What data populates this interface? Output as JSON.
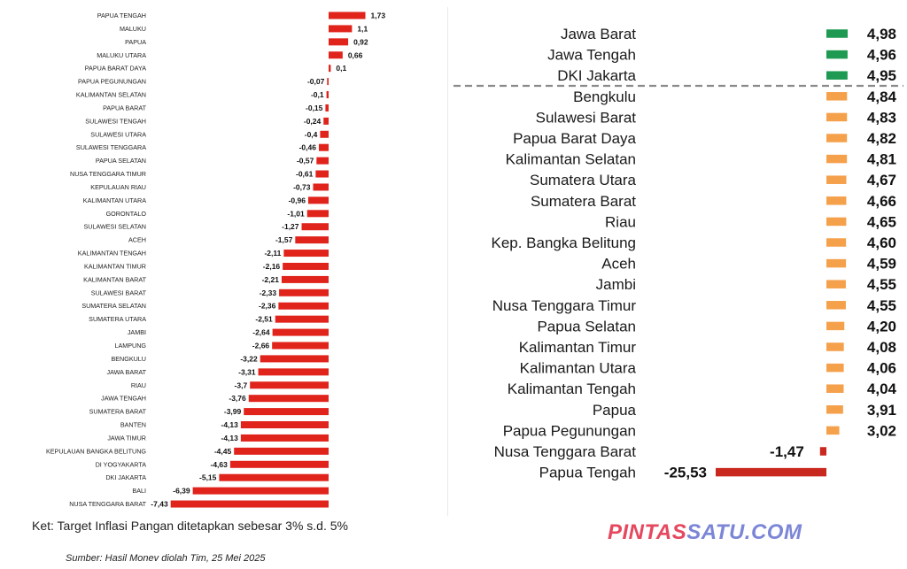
{
  "left": {
    "note": "Ket: Target Inflasi Pangan ditetapkan sebesar 3% s.d. 5%",
    "source": "Sumber: Hasil Monev  diolah Tim, 25 Mei 2025"
  },
  "watermark": {
    "part1": "PINTAS",
    "part2": "SATU.COM"
  },
  "chart_data": [
    {
      "type": "bar",
      "orientation": "horizontal",
      "color": "#e0231b",
      "categories": [
        "PAPUA TENGAH",
        "MALUKU",
        "PAPUA",
        "MALUKU UTARA",
        "PAPUA BARAT DAYA",
        "PAPUA PEGUNUNGAN",
        "KALIMANTAN SELATAN",
        "PAPUA BARAT",
        "SULAWESI TENGAH",
        "SULAWESI UTARA",
        "SULAWESI TENGGARA",
        "PAPUA SELATAN",
        "NUSA TENGGARA TIMUR",
        "KEPULAUAN RIAU",
        "KALIMANTAN UTARA",
        "GORONTALO",
        "SULAWESI SELATAN",
        "ACEH",
        "KALIMANTAN TENGAH",
        "KALIMANTAN TIMUR",
        "KALIMANTAN BARAT",
        "SULAWESI BARAT",
        "SUMATERA SELATAN",
        "SUMATERA UTARA",
        "JAMBI",
        "LAMPUNG",
        "BENGKULU",
        "JAWA BARAT",
        "RIAU",
        "JAWA TENGAH",
        "SUMATERA BARAT",
        "BANTEN",
        "JAWA TIMUR",
        "KEPULAUAN BANGKA BELITUNG",
        "DI YOGYAKARTA",
        "DKI JAKARTA",
        "BALI",
        "NUSA TENGGARA BARAT"
      ],
      "values": [
        1.73,
        1.1,
        0.92,
        0.66,
        0.1,
        -0.07,
        -0.1,
        -0.15,
        -0.24,
        -0.4,
        -0.46,
        -0.57,
        -0.61,
        -0.73,
        -0.96,
        -1.01,
        -1.27,
        -1.57,
        -2.11,
        -2.16,
        -2.21,
        -2.33,
        -2.36,
        -2.51,
        -2.64,
        -2.66,
        -3.22,
        -3.31,
        -3.7,
        -3.76,
        -3.99,
        -4.13,
        -4.13,
        -4.45,
        -4.63,
        -5.15,
        -6.39,
        -7.43
      ],
      "labels": [
        "1,73",
        "1,1",
        "0,92",
        "0,66",
        "0,1",
        "-0,07",
        "-0,1",
        "-0,15",
        "-0,24",
        "-0,4",
        "-0,46",
        "-0,57",
        "-0,61",
        "-0,73",
        "-0,96",
        "-1,01",
        "-1,27",
        "-1,57",
        "-2,11",
        "-2,16",
        "-2,21",
        "-2,33",
        "-2,36",
        "-2,51",
        "-2,64",
        "-2,66",
        "-3,22",
        "-3,31",
        "-3,7",
        "-3,76",
        "-3,99",
        "-4,13",
        "-4,13",
        "-4,45",
        "-4,63",
        "-5,15",
        "-6,39",
        "-7,43"
      ]
    },
    {
      "type": "bar",
      "orientation": "horizontal",
      "categories": [
        "Jawa Barat",
        "Jawa Tengah",
        "DKI Jakarta",
        "Bengkulu",
        "Sulawesi Barat",
        "Papua Barat Daya",
        "Kalimantan Selatan",
        "Sumatera Utara",
        "Sumatera Barat",
        "Riau",
        "Kep. Bangka Belitung",
        "Aceh",
        "Jambi",
        "Nusa Tenggara Timur",
        "Papua Selatan",
        "Kalimantan Timur",
        "Kalimantan Utara",
        "Kalimantan Tengah",
        "Papua",
        "Papua Pegunungan",
        "Nusa Tenggara Barat",
        "Papua Tengah"
      ],
      "values": [
        4.98,
        4.96,
        4.95,
        4.84,
        4.83,
        4.82,
        4.81,
        4.67,
        4.66,
        4.65,
        4.6,
        4.59,
        4.55,
        4.55,
        4.2,
        4.08,
        4.06,
        4.04,
        3.91,
        3.02,
        -1.47,
        -25.53
      ],
      "labels": [
        "4,98",
        "4,96",
        "4,95",
        "4,84",
        "4,83",
        "4,82",
        "4,81",
        "4,67",
        "4,66",
        "4,65",
        "4,60",
        "4,59",
        "4,55",
        "4,55",
        "4,20",
        "4,08",
        "4,06",
        "4,04",
        "3,91",
        "3,02",
        "-1,47",
        "-25,53"
      ],
      "bar_colors": [
        "#1e9a52",
        "#1e9a52",
        "#1e9a52",
        "#f5a04a",
        "#f5a04a",
        "#f5a04a",
        "#f5a04a",
        "#f5a04a",
        "#f5a04a",
        "#f5a04a",
        "#f5a04a",
        "#f5a04a",
        "#f5a04a",
        "#f5a04a",
        "#f5a04a",
        "#f5a04a",
        "#f5a04a",
        "#f5a04a",
        "#f5a04a",
        "#f5a04a",
        "#c8281e",
        "#c8281e"
      ],
      "separator_after_index": 2
    }
  ]
}
